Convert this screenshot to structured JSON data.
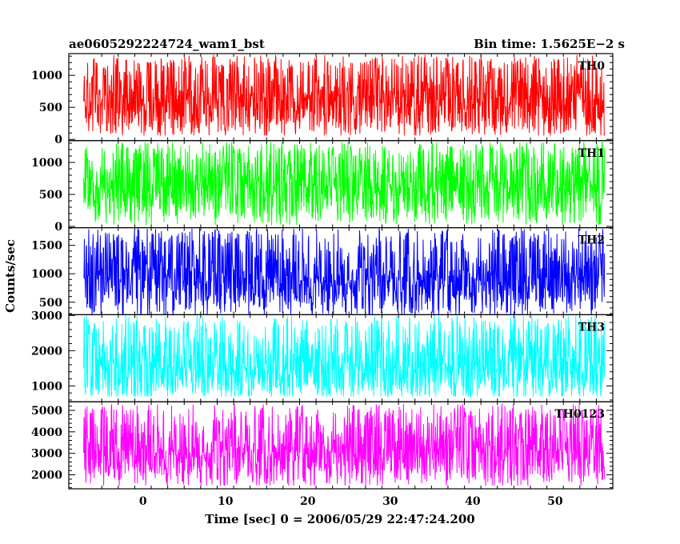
{
  "header": {
    "title_left": "ae0605292224724_wam1_bst",
    "title_right": "Bin time: 1.5625E−2 s"
  },
  "chart_data": {
    "type": "line",
    "xlabel": "Time [sec] 0 = 2006/05/29 22:47:24.200",
    "ylabel": "Counts/sec",
    "xlim": [
      -9,
      57
    ],
    "x_ticks": [
      0,
      10,
      20,
      30,
      40,
      50
    ],
    "data_x_range": [
      -7.2,
      56.0
    ],
    "panels": [
      {
        "name": "TH0",
        "color": "#ff0000",
        "ylim": [
          -20,
          1340
        ],
        "y_ticks": [
          0,
          500,
          1000
        ],
        "y_mean": 620,
        "y_spread": [
          60,
          1320
        ]
      },
      {
        "name": "TH1",
        "color": "#00ff00",
        "ylim": [
          -20,
          1340
        ],
        "y_ticks": [
          0,
          500,
          1000
        ],
        "y_mean": 650,
        "y_spread": [
          20,
          1320
        ]
      },
      {
        "name": "TH2",
        "color": "#0000ff",
        "ylim": [
          280,
          1810
        ],
        "y_ticks": [
          500,
          1000,
          1500
        ],
        "y_mean": 950,
        "y_spread": [
          280,
          1800
        ]
      },
      {
        "name": "TH3",
        "color": "#00ffff",
        "ylim": [
          550,
          3020
        ],
        "y_ticks": [
          1000,
          2000,
          3000
        ],
        "y_mean": 1550,
        "y_spread": [
          700,
          3000
        ]
      },
      {
        "name": "TH0123",
        "color": "#ff00ff",
        "ylim": [
          1350,
          5400
        ],
        "y_ticks": [
          2000,
          3000,
          4000,
          5000
        ],
        "y_mean": 3200,
        "y_spread": [
          1500,
          5300
        ]
      }
    ]
  }
}
